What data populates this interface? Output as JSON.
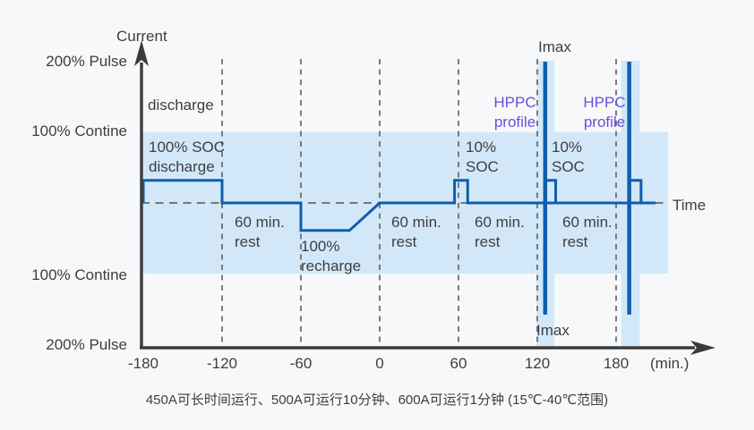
{
  "colors": {
    "bg": "#f7f8fa",
    "band": "#d2e8f8",
    "line": "#0f5dad",
    "axis": "#3b3b3e",
    "dash": "#66676a",
    "text": "#3e3e41",
    "purple": "#6b4fdb"
  },
  "labels": {
    "current_axis": "Current",
    "pulse200_top": "200% Pulse",
    "contine100_top": "100% Contine",
    "contine100_bottom": "100% Contine",
    "pulse200_bottom": "200% Pulse",
    "discharge_region": "discharge",
    "soc100_discharge": "100% SOC\ndischarge",
    "rest1": "60 min.\nrest",
    "rest2": "60 min.\nrest",
    "rest3": "60 min.\nrest",
    "rest4": "60 min.\nrest",
    "recharge": "100%\nrecharge",
    "soc10_first": "10%\nSOC",
    "soc10_second": "10%\nSOC",
    "hppc_first": "HPPC\nprofile",
    "hppc_second": "HPPC\nprofile",
    "imax_top": "Imax",
    "imax_bottom": "Imax",
    "time_axis": "Time",
    "minutes_unit": "(min.)"
  },
  "caption": "450A可长时间运行、500A可运行10分钟、600A可运行1分钟 (15℃-40℃范围)",
  "chart_data": {
    "type": "line",
    "xlabel": "(min.)",
    "ylabel": "Current",
    "x_ticks": [
      -180,
      -120,
      -60,
      0,
      60,
      120,
      180
    ],
    "dashed_gridlines_t": [
      -120,
      -60,
      0,
      60,
      120,
      180
    ],
    "y_level_unit": "fraction of 100% continuous current",
    "y_reference_levels": {
      "pulse_200pct": 2.0,
      "continuous_100pct": 1.0,
      "rest": 0.0,
      "continuous_minus_100pct": -1.0,
      "pulse_minus_200pct": -2.0
    },
    "waveform_t_level": [
      [
        -180,
        0
      ],
      [
        -180,
        0.32
      ],
      [
        -120,
        0.32
      ],
      [
        -120,
        0
      ],
      [
        -60,
        0
      ],
      [
        -60,
        -0.39
      ],
      [
        -23,
        -0.39
      ],
      [
        0,
        0
      ],
      [
        57,
        0
      ],
      [
        57,
        0.32
      ],
      [
        67,
        0.32
      ],
      [
        67,
        0
      ],
      [
        210,
        0
      ]
    ],
    "hppc_pulse_rects": [
      [
        [
          126,
          0.32
        ],
        [
          134,
          0.32
        ],
        [
          134,
          0
        ]
      ],
      [
        [
          190,
          0.32
        ],
        [
          199,
          0.32
        ],
        [
          199,
          0
        ]
      ]
    ],
    "imax_spikes": {
      "t": [
        126,
        190
      ],
      "top_level": 2.0,
      "bottom_level": -1.58
    },
    "bands": {
      "horizontal_level_range": [
        -1,
        1
      ],
      "vertical_t_ranges": [
        [
          119.5,
          133
        ],
        [
          184,
          198
        ]
      ]
    }
  }
}
